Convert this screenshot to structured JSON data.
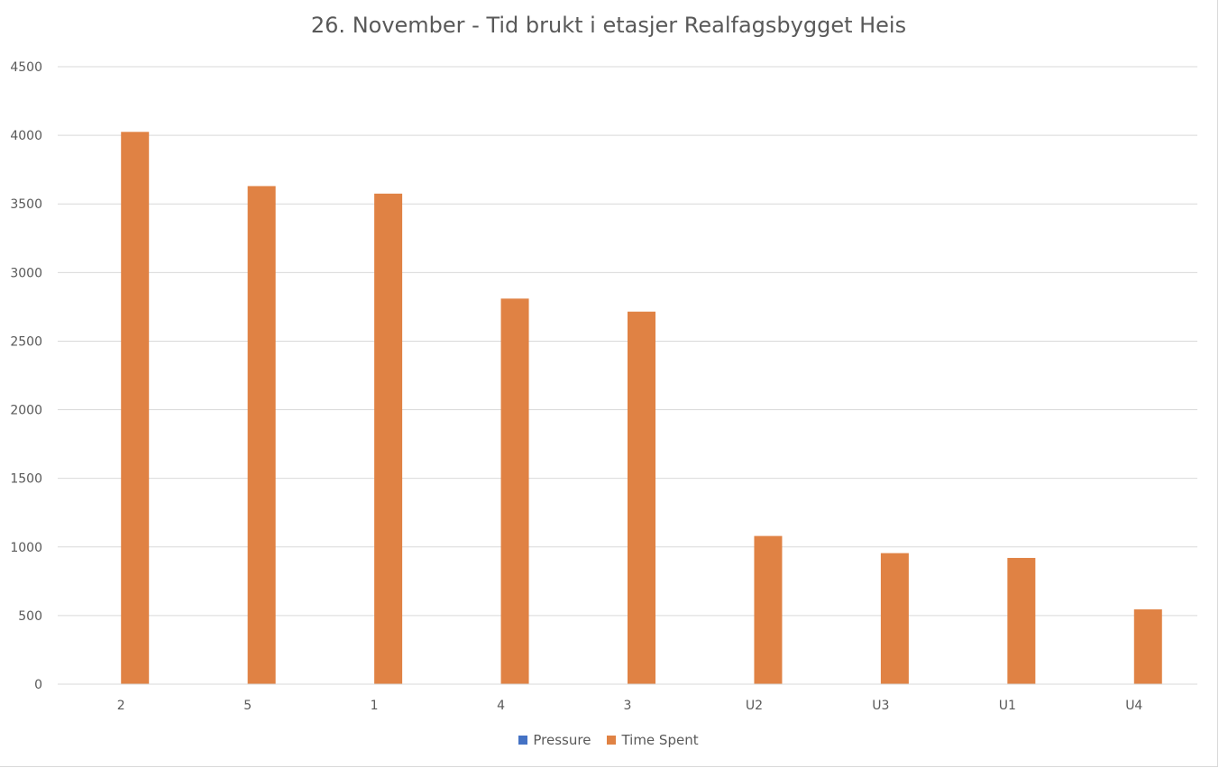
{
  "chart_data": {
    "type": "bar",
    "title": "26. November - Tid brukt i etasjer Realfagsbygget Heis",
    "xlabel": "",
    "ylabel": "",
    "categories": [
      "2",
      "5",
      "1",
      "4",
      "3",
      "U2",
      "U3",
      "U1",
      "U4"
    ],
    "series": [
      {
        "name": "Pressure",
        "color": "#4472c4",
        "values": [
          0,
          0,
          0,
          0,
          0,
          0,
          0,
          0,
          0
        ]
      },
      {
        "name": "Time Spent",
        "color": "#e08244",
        "values": [
          4025,
          3630,
          3575,
          2810,
          2715,
          1080,
          955,
          920,
          545
        ]
      }
    ],
    "ylim": [
      0,
      4500
    ],
    "yticks": [
      0,
      500,
      1000,
      1500,
      2000,
      2500,
      3000,
      3500,
      4000,
      4500
    ],
    "grid": true,
    "legend_position": "bottom"
  }
}
